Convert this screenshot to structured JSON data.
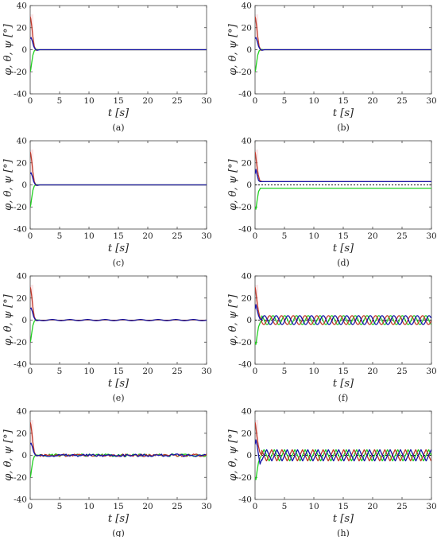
{
  "figure": {
    "panels": [
      "(a)",
      "(b)",
      "(c)",
      "(d)",
      "(e)",
      "(f)",
      "(g)",
      "(h)"
    ]
  },
  "colors": {
    "phi": "#c0392b",
    "theta": "#1fd01f",
    "psi": "#1414a8",
    "reference": "#111111",
    "phi_transient_band": "#f6c9cf"
  },
  "chart_data": [
    {
      "type": "line",
      "panel": "(a)",
      "xlabel": "t [s]",
      "ylabel": "φ, θ, ψ [°]",
      "xlim": [
        0,
        30
      ],
      "ylim": [
        -40,
        40
      ],
      "xticks": [
        0,
        5,
        10,
        15,
        20,
        25,
        30
      ],
      "yticks": [
        -40,
        -20,
        0,
        20,
        40
      ],
      "grid": false,
      "series": [
        {
          "key": "phi",
          "x": [
            0,
            0.1,
            0.25,
            0.45,
            0.7,
            1.0,
            1.5,
            30
          ],
          "y": [
            30,
            28,
            22,
            12,
            3,
            -0.5,
            0,
            0
          ]
        },
        {
          "key": "theta",
          "x": [
            0,
            0.1,
            0.25,
            0.45,
            0.7,
            1.0,
            1.5,
            30
          ],
          "y": [
            -20,
            -18,
            -12,
            -5,
            -1,
            0.3,
            0,
            0
          ]
        },
        {
          "key": "psi",
          "x": [
            0,
            0.15,
            0.35,
            0.6,
            0.85,
            1.2,
            1.6,
            30
          ],
          "y": [
            10,
            11,
            8,
            3,
            0.5,
            -0.5,
            0,
            0
          ]
        }
      ]
    },
    {
      "type": "line",
      "panel": "(b)",
      "xlabel": "t [s]",
      "ylabel": "φ, θ, ψ [°]",
      "xlim": [
        0,
        30
      ],
      "ylim": [
        -40,
        40
      ],
      "xticks": [
        0,
        5,
        10,
        15,
        20,
        25,
        30
      ],
      "yticks": [
        -40,
        -20,
        0,
        20,
        40
      ],
      "grid": false,
      "series": [
        {
          "key": "phi",
          "x": [
            0,
            0.1,
            0.25,
            0.45,
            0.7,
            1.0,
            1.5,
            30
          ],
          "y": [
            30,
            28,
            22,
            12,
            3,
            -0.5,
            0,
            0
          ]
        },
        {
          "key": "theta",
          "x": [
            0,
            0.1,
            0.25,
            0.45,
            0.7,
            1.0,
            1.5,
            30
          ],
          "y": [
            -20,
            -18,
            -12,
            -5,
            -1,
            0.3,
            0,
            0
          ]
        },
        {
          "key": "psi",
          "x": [
            0,
            0.15,
            0.35,
            0.6,
            0.85,
            1.2,
            1.6,
            30
          ],
          "y": [
            10,
            11,
            8,
            3,
            0.5,
            -0.5,
            0,
            0
          ]
        }
      ]
    },
    {
      "type": "line",
      "panel": "(c)",
      "xlabel": "t [s]",
      "ylabel": "φ, θ, ψ [°]",
      "xlim": [
        0,
        30
      ],
      "ylim": [
        -40,
        40
      ],
      "xticks": [
        0,
        5,
        10,
        15,
        20,
        25,
        30
      ],
      "yticks": [
        -40,
        -20,
        0,
        20,
        40
      ],
      "grid": false,
      "series": [
        {
          "key": "phi",
          "x": [
            0,
            0.1,
            0.25,
            0.45,
            0.7,
            1.0,
            1.5,
            30
          ],
          "y": [
            30,
            28,
            22,
            12,
            3,
            -0.5,
            0,
            0
          ]
        },
        {
          "key": "theta",
          "x": [
            0,
            0.1,
            0.25,
            0.45,
            0.7,
            1.0,
            1.5,
            30
          ],
          "y": [
            -20,
            -18,
            -12,
            -5,
            -1,
            0.3,
            0,
            0
          ]
        },
        {
          "key": "psi",
          "x": [
            0,
            0.15,
            0.35,
            0.6,
            0.85,
            1.2,
            1.6,
            30
          ],
          "y": [
            10,
            11,
            8,
            3,
            0.5,
            -0.5,
            0,
            0
          ]
        }
      ]
    },
    {
      "type": "line",
      "panel": "(d)",
      "xlabel": "t [s]",
      "ylabel": "φ, θ, ψ [°]",
      "xlim": [
        0,
        30
      ],
      "ylim": [
        -40,
        40
      ],
      "xticks": [
        0,
        5,
        10,
        15,
        20,
        25,
        30
      ],
      "yticks": [
        -40,
        -20,
        0,
        20,
        40
      ],
      "grid": false,
      "series": [
        {
          "key": "reference",
          "dash": true,
          "x": [
            0,
            30
          ],
          "y": [
            0,
            0
          ]
        },
        {
          "key": "phi",
          "x": [
            0,
            0.1,
            0.3,
            0.55,
            0.8,
            1.2,
            30
          ],
          "y": [
            30,
            27,
            18,
            9,
            4,
            3,
            3
          ]
        },
        {
          "key": "theta",
          "x": [
            0,
            0.15,
            0.35,
            0.6,
            0.9,
            1.3,
            30
          ],
          "y": [
            -20,
            -22,
            -14,
            -6,
            -3,
            -3,
            -3
          ]
        },
        {
          "key": "psi",
          "x": [
            0,
            0.15,
            0.35,
            0.6,
            0.85,
            1.2,
            30
          ],
          "y": [
            10,
            14,
            9,
            4,
            3,
            3,
            3
          ]
        }
      ]
    },
    {
      "type": "line",
      "panel": "(e)",
      "xlabel": "t [s]",
      "ylabel": "φ, θ, ψ [°]",
      "xlim": [
        0,
        30
      ],
      "ylim": [
        -40,
        40
      ],
      "xticks": [
        0,
        5,
        10,
        15,
        20,
        25,
        30
      ],
      "yticks": [
        -40,
        -20,
        0,
        20,
        40
      ],
      "grid": false,
      "series": [
        {
          "key": "phi",
          "x": [
            0,
            0.1,
            0.25,
            0.45,
            0.7,
            1.0,
            1.5,
            30
          ],
          "y": [
            30,
            28,
            22,
            12,
            3,
            -0.5,
            0,
            0
          ]
        },
        {
          "key": "theta",
          "x": [
            0,
            0.1,
            0.25,
            0.45,
            0.7,
            1.0,
            1.5,
            30
          ],
          "y": [
            -20,
            -18,
            -12,
            -5,
            -1,
            0.3,
            0,
            0
          ]
        },
        {
          "key": "psi",
          "x": [
            0,
            0.15,
            0.35,
            0.6,
            0.85,
            1.2,
            1.6,
            30
          ],
          "y": [
            10,
            11,
            8,
            3,
            0.5,
            -0.5,
            0,
            0
          ]
        }
      ],
      "steady_state": {
        "amplitude": 0.6,
        "period": 3.0
      }
    },
    {
      "type": "line",
      "panel": "(f)",
      "xlabel": "t [s]",
      "ylabel": "φ, θ, ψ [°]",
      "xlim": [
        0,
        30
      ],
      "ylim": [
        -40,
        40
      ],
      "xticks": [
        0,
        5,
        10,
        15,
        20,
        25,
        30
      ],
      "yticks": [
        -40,
        -20,
        0,
        20,
        40
      ],
      "grid": false,
      "series": [
        {
          "key": "reference",
          "dash": true,
          "x": [
            0,
            30
          ],
          "y": [
            0,
            0
          ]
        },
        {
          "key": "phi",
          "x": [
            0,
            0.1,
            0.3,
            0.55,
            0.8,
            1.1
          ],
          "y": [
            30,
            27,
            18,
            9,
            3,
            0
          ]
        },
        {
          "key": "theta",
          "x": [
            0,
            0.15,
            0.35,
            0.6,
            0.9,
            1.1
          ],
          "y": [
            -20,
            -22,
            -14,
            -6,
            -2,
            0
          ]
        },
        {
          "key": "psi",
          "x": [
            0,
            0.15,
            0.35,
            0.6,
            0.85,
            1.1
          ],
          "y": [
            10,
            14,
            9,
            4,
            1,
            0
          ]
        }
      ],
      "oscillation": {
        "amplitude": 4,
        "period": 2.0,
        "start": 1.1,
        "phase_lag": [
          0,
          0.55,
          1.1
        ],
        "order": [
          "psi",
          "theta",
          "phi"
        ]
      }
    },
    {
      "type": "line",
      "panel": "(g)",
      "xlabel": "t [s]",
      "ylabel": "φ, θ, ψ [°]",
      "xlim": [
        0,
        30
      ],
      "ylim": [
        -40,
        40
      ],
      "xticks": [
        0,
        5,
        10,
        15,
        20,
        25,
        30
      ],
      "yticks": [
        -40,
        -20,
        0,
        20,
        40
      ],
      "grid": false,
      "series": [
        {
          "key": "phi",
          "x": [
            0,
            0.1,
            0.25,
            0.45,
            0.7,
            1.0,
            1.5
          ],
          "y": [
            30,
            28,
            22,
            12,
            3,
            -0.5,
            0
          ]
        },
        {
          "key": "theta",
          "x": [
            0,
            0.1,
            0.25,
            0.45,
            0.7,
            1.0,
            1.5
          ],
          "y": [
            -20,
            -18,
            -12,
            -5,
            -1,
            0.3,
            0
          ]
        },
        {
          "key": "psi",
          "x": [
            0,
            0.15,
            0.35,
            0.6,
            0.85,
            1.2,
            1.6
          ],
          "y": [
            10,
            11,
            8,
            3,
            0.5,
            -0.5,
            0
          ]
        }
      ],
      "noise": {
        "amplitude": 1.2,
        "start": 1.5
      }
    },
    {
      "type": "line",
      "panel": "(h)",
      "xlabel": "t [s]",
      "ylabel": "φ, θ, ψ [°]",
      "xlim": [
        0,
        30
      ],
      "ylim": [
        -40,
        40
      ],
      "xticks": [
        0,
        5,
        10,
        15,
        20,
        25,
        30
      ],
      "yticks": [
        -40,
        -20,
        0,
        20,
        40
      ],
      "grid": false,
      "series": [
        {
          "key": "reference",
          "dash": true,
          "x": [
            0,
            30
          ],
          "y": [
            0,
            0
          ]
        },
        {
          "key": "phi",
          "x": [
            0,
            0.1,
            0.3,
            0.55,
            0.8,
            1.1
          ],
          "y": [
            30,
            27,
            18,
            9,
            3,
            0
          ]
        },
        {
          "key": "theta",
          "x": [
            0,
            0.15,
            0.35,
            0.6,
            0.9,
            1.1
          ],
          "y": [
            -20,
            -22,
            -14,
            -6,
            -2,
            0
          ]
        },
        {
          "key": "psi",
          "x": [
            0,
            0.15,
            0.35,
            0.6,
            0.85,
            1.1
          ],
          "y": [
            10,
            14,
            9,
            0,
            -8,
            -4
          ]
        }
      ],
      "oscillation": {
        "amplitude": 5,
        "period": 1.75,
        "start": 1.1,
        "phase_lag": [
          0,
          0.45,
          0.9
        ],
        "order": [
          "psi",
          "theta",
          "phi"
        ],
        "sawtooth": true
      }
    }
  ]
}
